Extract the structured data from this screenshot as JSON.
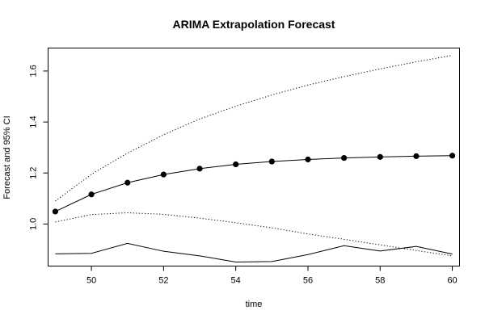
{
  "chart_data": {
    "type": "line",
    "title": "ARIMA Extrapolation Forecast",
    "xlabel": "time",
    "ylabel": "Forecast and 95% CI",
    "xlim": [
      48.8,
      60.2
    ],
    "ylim": [
      0.835,
      1.69
    ],
    "x_ticks": [
      "50",
      "52",
      "54",
      "56",
      "58",
      "60"
    ],
    "y_ticks": [
      "1.0",
      "1.2",
      "1.4",
      "1.6"
    ],
    "x": [
      49,
      50,
      51,
      52,
      53,
      54,
      55,
      56,
      57,
      58,
      59,
      60
    ],
    "series": [
      {
        "role": "forecast",
        "style": "line-with-points",
        "values": [
          1.049,
          1.116,
          1.162,
          1.194,
          1.217,
          1.234,
          1.245,
          1.253,
          1.259,
          1.263,
          1.266,
          1.268
        ]
      },
      {
        "role": "upper-95",
        "style": "dotted",
        "values": [
          1.09,
          1.195,
          1.278,
          1.35,
          1.412,
          1.462,
          1.506,
          1.545,
          1.578,
          1.608,
          1.636,
          1.661
        ]
      },
      {
        "role": "lower-95",
        "style": "dotted",
        "values": [
          1.008,
          1.037,
          1.044,
          1.038,
          1.023,
          1.005,
          0.985,
          0.961,
          0.94,
          0.918,
          0.896,
          0.875
        ]
      },
      {
        "role": "actual",
        "style": "solid",
        "values": [
          0.883,
          0.885,
          0.924,
          0.893,
          0.875,
          0.851,
          0.853,
          0.88,
          0.915,
          0.894,
          0.912,
          0.882
        ]
      }
    ]
  }
}
